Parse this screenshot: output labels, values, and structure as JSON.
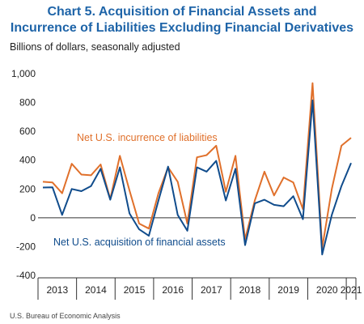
{
  "chart_data": {
    "type": "line",
    "title": "Chart 5. Acquisition of Financial Assets and Incurrence of Liabilities Excluding Financial Derivatives",
    "subtitle": "Billions of dollars, seasonally adjusted",
    "source": "U.S. Bureau of Economic Analysis",
    "categories": [
      "2013",
      null,
      null,
      null,
      "2014",
      null,
      null,
      null,
      "2015",
      null,
      null,
      null,
      "2016",
      null,
      null,
      null,
      "2017",
      null,
      null,
      null,
      "2018",
      null,
      null,
      null,
      "2019",
      null,
      null,
      null,
      "2020",
      null,
      null,
      null,
      "2021"
    ],
    "series": [
      {
        "name": "Net U.S. incurrence of liabilities",
        "color": "#e0702b",
        "values": [
          250,
          245,
          170,
          375,
          300,
          295,
          370,
          130,
          430,
          190,
          -40,
          -75,
          170,
          350,
          250,
          -40,
          420,
          435,
          500,
          180,
          430,
          -150,
          120,
          320,
          155,
          280,
          245,
          60,
          935,
          -210,
          200,
          500,
          555
        ]
      },
      {
        "name": "Net U.S. acquisition of financial assets",
        "color": "#104c8c",
        "values": [
          210,
          212,
          20,
          200,
          185,
          220,
          340,
          125,
          350,
          30,
          -80,
          -125,
          120,
          355,
          20,
          -90,
          350,
          320,
          395,
          120,
          340,
          -190,
          100,
          125,
          90,
          80,
          150,
          -10,
          815,
          -255,
          20,
          220,
          380
        ]
      }
    ],
    "ylim": [
      -400,
      1000
    ],
    "yticks": [
      -400,
      -200,
      0,
      200,
      400,
      600,
      800,
      {
        "value": 1000,
        "label": "1,000"
      }
    ]
  }
}
